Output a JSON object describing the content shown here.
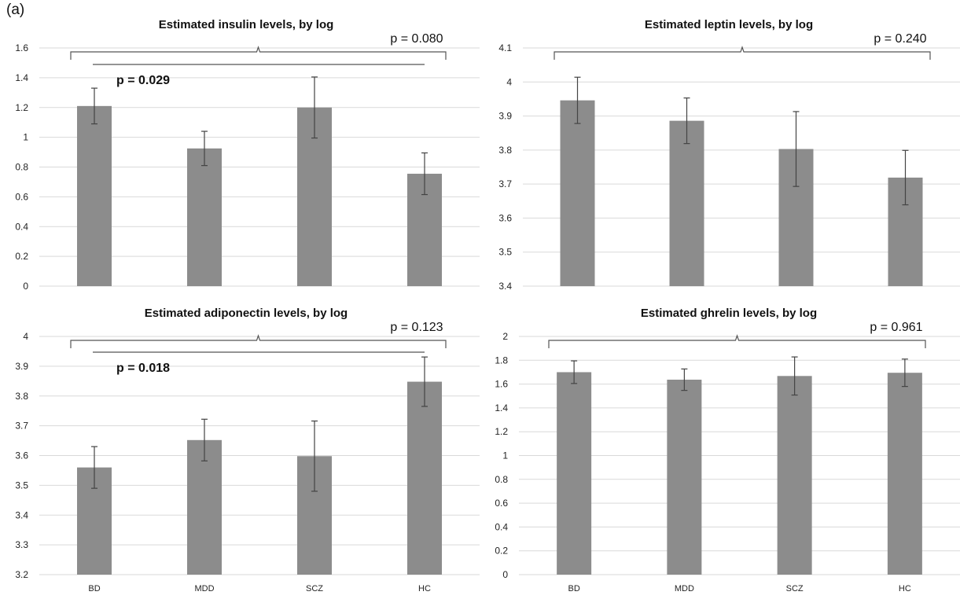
{
  "figure_label": "(a)",
  "colors": {
    "bar": "#8c8c8c",
    "grid": "#d9d9d9",
    "errorbar": "#444444",
    "bracket": "#555555"
  },
  "chart_data": [
    {
      "type": "bar",
      "title": "Estimated insulin levels, by log",
      "categories": [
        "BD",
        "MDD",
        "SCZ",
        "HC"
      ],
      "values": [
        1.21,
        0.925,
        1.2,
        0.755
      ],
      "errors": [
        0.12,
        0.115,
        0.205,
        0.14
      ],
      "ylim": [
        0,
        1.6
      ],
      "yticks": [
        "0",
        "0.2",
        "0.4",
        "0.6",
        "0.8",
        "1",
        "1.2",
        "1.4",
        "1.6"
      ],
      "show_category_labels": false,
      "grid": true,
      "annotations": [
        {
          "text": "p = 0.080",
          "bold": false,
          "kind": "overall"
        },
        {
          "text": "p = 0.029",
          "bold": true,
          "kind": "pairwise"
        }
      ]
    },
    {
      "type": "bar",
      "title": "Estimated leptin levels, by log",
      "categories": [
        "BD",
        "MDD",
        "SCZ",
        "HC"
      ],
      "values": [
        3.946,
        3.886,
        3.803,
        3.719
      ],
      "errors": [
        0.068,
        0.067,
        0.11,
        0.08
      ],
      "ylim": [
        3.4,
        4.1
      ],
      "yticks": [
        "3.4",
        "3.5",
        "3.6",
        "3.7",
        "3.8",
        "3.9",
        "4",
        "4.1"
      ],
      "show_category_labels": false,
      "grid": true,
      "annotations": [
        {
          "text": "p = 0.240",
          "bold": false,
          "kind": "overall"
        }
      ]
    },
    {
      "type": "bar",
      "title": "Estimated adiponectin levels, by log",
      "categories": [
        "BD",
        "MDD",
        "SCZ",
        "HC"
      ],
      "values": [
        3.56,
        3.652,
        3.598,
        3.848
      ],
      "errors": [
        0.07,
        0.07,
        0.118,
        0.083
      ],
      "ylim": [
        3.2,
        4
      ],
      "yticks": [
        "3.2",
        "3.3",
        "3.4",
        "3.5",
        "3.6",
        "3.7",
        "3.8",
        "3.9",
        "4"
      ],
      "show_category_labels": true,
      "grid": true,
      "annotations": [
        {
          "text": "p = 0.123",
          "bold": false,
          "kind": "overall"
        },
        {
          "text": "p = 0.018",
          "bold": true,
          "kind": "pairwise"
        }
      ]
    },
    {
      "type": "bar",
      "title": "Estimated ghrelin levels, by log",
      "categories": [
        "BD",
        "MDD",
        "SCZ",
        "HC"
      ],
      "values": [
        1.7,
        1.637,
        1.668,
        1.695
      ],
      "errors": [
        0.095,
        0.09,
        0.16,
        0.115
      ],
      "ylim": [
        0,
        2
      ],
      "yticks": [
        "0",
        "0.2",
        "0.4",
        "0.6",
        "0.8",
        "1",
        "1.2",
        "1.4",
        "1.6",
        "1.8",
        "2"
      ],
      "show_category_labels": true,
      "grid": true,
      "annotations": [
        {
          "text": "p = 0.961",
          "bold": false,
          "kind": "overall"
        }
      ]
    }
  ]
}
